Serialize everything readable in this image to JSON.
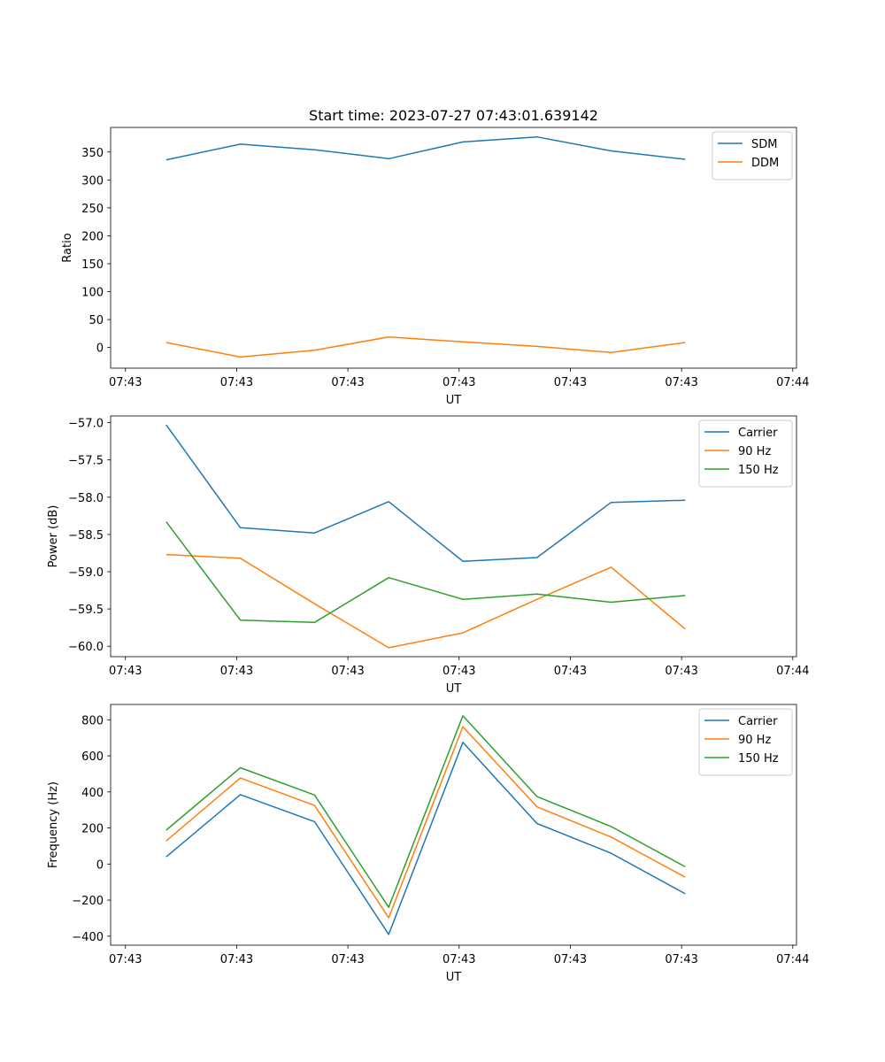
{
  "figure": {
    "title": "Start time: 2023-07-27 07:43:01.639142"
  },
  "chart_data": [
    {
      "type": "line",
      "xlabel": "UT",
      "ylabel": "Ratio",
      "x": [
        1,
        2,
        3,
        4,
        5,
        6,
        7,
        8
      ],
      "xlim": [
        0.25,
        9.5
      ],
      "xticks": [
        0.45,
        1.95,
        3.45,
        4.95,
        6.45,
        7.95,
        9.45
      ],
      "xtick_labels": [
        "07:43",
        "07:43",
        "07:43",
        "07:43",
        "07:43",
        "07:43",
        "07:44"
      ],
      "ylim": [
        -37,
        394
      ],
      "yticks": [
        0,
        50,
        100,
        150,
        200,
        250,
        300,
        350
      ],
      "ytick_labels": [
        "0",
        "50",
        "100",
        "150",
        "200",
        "250",
        "300",
        "350"
      ],
      "legend_position": "top-right",
      "series": [
        {
          "name": "SDM",
          "color": "#1f77b4",
          "values": [
            336,
            364,
            354,
            338,
            368,
            377,
            352,
            337
          ]
        },
        {
          "name": "DDM",
          "color": "#ff7f0e",
          "values": [
            9,
            -17,
            -5,
            19,
            10,
            2,
            -9,
            9
          ]
        }
      ]
    },
    {
      "type": "line",
      "xlabel": "UT",
      "ylabel": "Power (dB)",
      "x": [
        1,
        2,
        3,
        4,
        5,
        6,
        7,
        8
      ],
      "xlim": [
        0.25,
        9.5
      ],
      "xticks": [
        0.45,
        1.95,
        3.45,
        4.95,
        6.45,
        7.95,
        9.45
      ],
      "xtick_labels": [
        "07:43",
        "07:43",
        "07:43",
        "07:43",
        "07:43",
        "07:43",
        "07:44"
      ],
      "ylim": [
        -60.14,
        -56.91
      ],
      "yticks": [
        -57.0,
        -57.5,
        -58.0,
        -58.5,
        -59.0,
        -59.5,
        -60.0
      ],
      "ytick_labels": [
        "−57.0",
        "−57.5",
        "−58.0",
        "−58.5",
        "−59.0",
        "−59.5",
        "−60.0"
      ],
      "legend_position": "top-right",
      "series": [
        {
          "name": "Carrier",
          "color": "#1f77b4",
          "values": [
            -57.03,
            -58.41,
            -58.48,
            -58.06,
            -58.86,
            -58.81,
            -58.07,
            -58.04
          ]
        },
        {
          "name": "90 Hz",
          "color": "#ff7f0e",
          "values": [
            -58.77,
            -58.82,
            -59.43,
            -60.02,
            -59.82,
            -59.37,
            -58.94,
            -59.77
          ]
        },
        {
          "name": "150 Hz",
          "color": "#2ca02c",
          "values": [
            -58.33,
            -59.65,
            -59.68,
            -59.08,
            -59.37,
            -59.3,
            -59.41,
            -59.32
          ]
        }
      ]
    },
    {
      "type": "line",
      "xlabel": "UT",
      "ylabel": "Frequency (Hz)",
      "x": [
        1,
        2,
        3,
        4,
        5,
        6,
        7,
        8
      ],
      "xlim": [
        0.25,
        9.5
      ],
      "xticks": [
        0.45,
        1.95,
        3.45,
        4.95,
        6.45,
        7.95,
        9.45
      ],
      "xtick_labels": [
        "07:43",
        "07:43",
        "07:43",
        "07:43",
        "07:43",
        "07:43",
        "07:44"
      ],
      "ylim": [
        -450,
        885
      ],
      "yticks": [
        -400,
        -200,
        0,
        200,
        400,
        600,
        800
      ],
      "ytick_labels": [
        "−400",
        "−200",
        "0",
        "200",
        "400",
        "600",
        "800"
      ],
      "legend_position": "top-right",
      "series": [
        {
          "name": "Carrier",
          "color": "#1f77b4",
          "values": [
            40,
            385,
            235,
            -390,
            675,
            225,
            60,
            -165
          ]
        },
        {
          "name": "90 Hz",
          "color": "#ff7f0e",
          "values": [
            128,
            477,
            325,
            -298,
            762,
            317,
            150,
            -73
          ]
        },
        {
          "name": "150 Hz",
          "color": "#2ca02c",
          "values": [
            188,
            534,
            383,
            -240,
            822,
            374,
            208,
            -15
          ]
        }
      ]
    }
  ]
}
